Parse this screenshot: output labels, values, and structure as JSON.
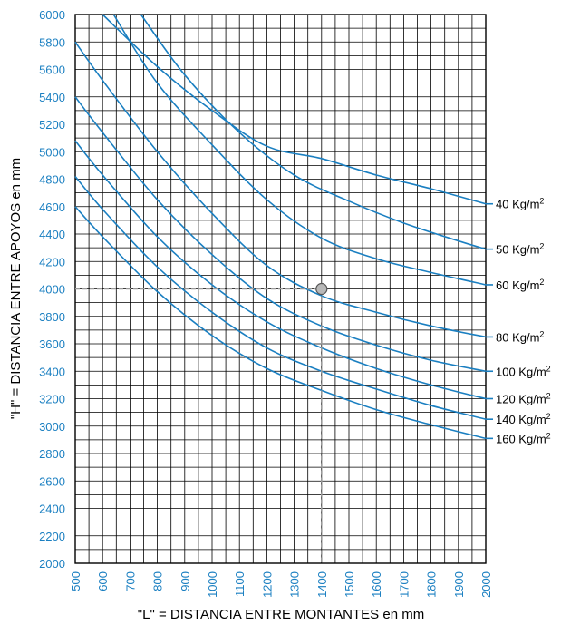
{
  "chart_data": {
    "type": "line",
    "title": "",
    "xlabel": "\"L\"  =  DISTANCIA ENTRE MONTANTES en mm",
    "ylabel": "\"H\"  =  DISTANCIA ENTRE APOYOS en mm",
    "xlim": [
      500,
      2000
    ],
    "ylim": [
      2000,
      6000
    ],
    "x_ticks": [
      500,
      600,
      700,
      800,
      900,
      1000,
      1100,
      1200,
      1300,
      1400,
      1500,
      1600,
      1700,
      1800,
      1900,
      2000
    ],
    "y_ticks": [
      2000,
      2200,
      2400,
      2600,
      2800,
      3000,
      3200,
      3400,
      3600,
      3800,
      4000,
      4200,
      4400,
      4600,
      4800,
      5000,
      5200,
      5400,
      5600,
      5800,
      6000
    ],
    "grid": {
      "x_minor_step": 50,
      "y_minor_step": 100
    },
    "series_color": "#1a7fc1",
    "series": [
      {
        "name": "40 Kg/m",
        "sup": "2",
        "x": [
          600,
          800,
          1000,
          1200,
          1400,
          1600,
          1800,
          2000
        ],
        "values": [
          6000,
          5620,
          5300,
          5040,
          4950,
          4830,
          4730,
          4620
        ]
      },
      {
        "name": "50 Kg/m",
        "sup": "2",
        "x": [
          740,
          900,
          1100,
          1300,
          1500,
          1700,
          1900,
          2000
        ],
        "values": [
          6000,
          5560,
          5140,
          4830,
          4640,
          4480,
          4350,
          4290
        ]
      },
      {
        "name": "60 Kg/m",
        "sup": "2",
        "x": [
          640,
          800,
          1000,
          1200,
          1400,
          1600,
          1800,
          2000
        ],
        "values": [
          6000,
          5500,
          5050,
          4650,
          4370,
          4220,
          4120,
          4030
        ]
      },
      {
        "name": "80 Kg/m",
        "sup": "2",
        "x": [
          500,
          600,
          800,
          1000,
          1200,
          1400,
          1600,
          1800,
          2000
        ],
        "values": [
          5800,
          5520,
          5000,
          4550,
          4170,
          3950,
          3830,
          3730,
          3650
        ]
      },
      {
        "name": "100 Kg/m",
        "sup": "2",
        "x": [
          500,
          600,
          800,
          1000,
          1200,
          1400,
          1600,
          1800,
          2000
        ],
        "values": [
          5400,
          5140,
          4650,
          4250,
          3930,
          3730,
          3590,
          3480,
          3400
        ]
      },
      {
        "name": "120 Kg/m",
        "sup": "2",
        "x": [
          500,
          600,
          800,
          1000,
          1200,
          1400,
          1600,
          1800,
          2000
        ],
        "values": [
          5080,
          4830,
          4380,
          4030,
          3760,
          3570,
          3420,
          3300,
          3200
        ]
      },
      {
        "name": "140 Kg/m",
        "sup": "2",
        "x": [
          500,
          600,
          800,
          1000,
          1200,
          1400,
          1600,
          1800,
          2000
        ],
        "values": [
          4820,
          4580,
          4160,
          3830,
          3570,
          3400,
          3270,
          3150,
          3050
        ]
      },
      {
        "name": "160 Kg/m",
        "sup": "2",
        "x": [
          500,
          600,
          800,
          1000,
          1200,
          1400,
          1600,
          1800,
          2000
        ],
        "values": [
          4600,
          4380,
          3980,
          3660,
          3420,
          3260,
          3120,
          3010,
          2910
        ]
      }
    ],
    "highlight_point": {
      "x": 1400,
      "y": 4000
    }
  }
}
